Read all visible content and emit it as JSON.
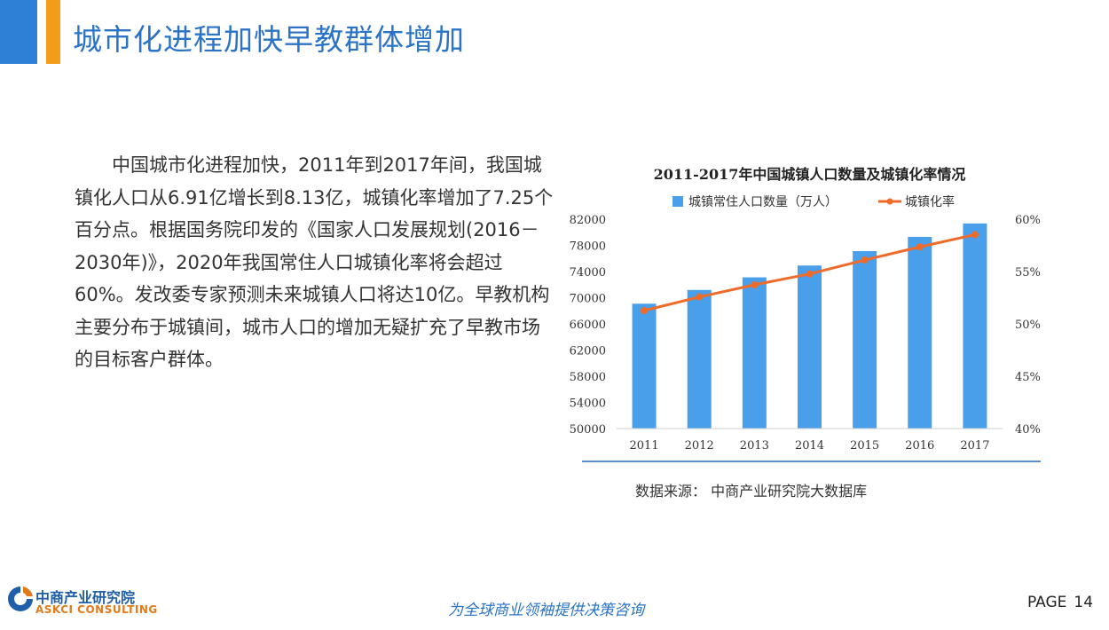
{
  "header": {
    "title": "城市化进程加快早教群体增加"
  },
  "paragraph": "中国城市化进程加快，2011年到2017年间，我国城镇化人口从6.91亿增长到8.13亿，城镇化率增加了7.25个百分点。根据国务院印发的《国家人口发展规划(2016－2030年)》，2020年我国常住人口城镇化率将会超过60%。发改委专家预测未来城镇人口将达10亿。早教机构主要分布于城镇间，城市人口的增加无疑扩充了早教市场的目标客户群体。",
  "chart_data": {
    "type": "bar+line",
    "title": "2011-2017年中国城镇人口数量及城镇化率情况",
    "categories": [
      "2011",
      "2012",
      "2013",
      "2014",
      "2015",
      "2016",
      "2017"
    ],
    "series": [
      {
        "name": "城镇常住人口数量（万人）",
        "type": "bar",
        "axis": "left",
        "values": [
          69079,
          71182,
          73111,
          74916,
          77116,
          79298,
          81347
        ]
      },
      {
        "name": "城镇化率",
        "type": "line",
        "axis": "right",
        "values": [
          51.27,
          52.57,
          53.73,
          54.77,
          56.1,
          57.35,
          58.52
        ]
      }
    ],
    "y_left": {
      "min": 50000,
      "max": 82000,
      "ticks": [
        50000,
        54000,
        58000,
        62000,
        66000,
        70000,
        74000,
        78000,
        82000
      ]
    },
    "y_right": {
      "min": 40,
      "max": 60,
      "ticks": [
        "40%",
        "45%",
        "50%",
        "55%",
        "60%"
      ]
    },
    "legend_position": "top",
    "colors": {
      "bar": "#4a9fea",
      "line": "#ee6b2a"
    }
  },
  "source": "数据来源： 中商产业研究院大数据库",
  "footer": {
    "logo_cn": "中商产业研究院",
    "logo_en": "ASKCI CONSULTING",
    "slogan": "为全球商业领袖提供决策咨询",
    "page_label": "PAGE",
    "page_number": "14"
  }
}
